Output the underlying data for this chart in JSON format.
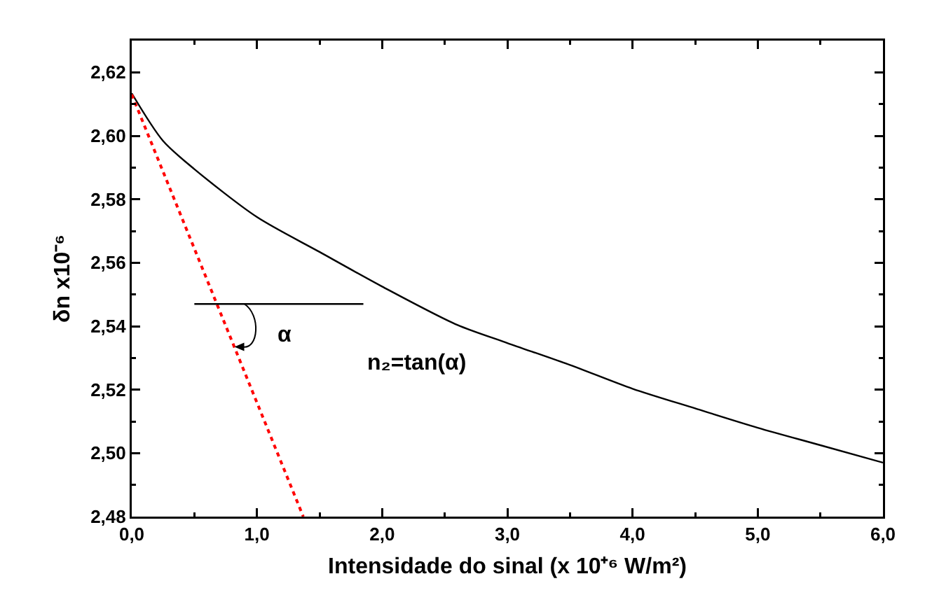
{
  "chart_data": {
    "type": "line",
    "xlabel": "Intensidade do sinal (x 10⁺⁶ W/m²)",
    "ylabel": "δn x10⁻⁶",
    "xlim": [
      0,
      6
    ],
    "ylim": [
      2.48,
      2.63
    ],
    "xticks": [
      {
        "value": 0,
        "label": "0,0"
      },
      {
        "value": 1,
        "label": "1,0"
      },
      {
        "value": 2,
        "label": "2,0"
      },
      {
        "value": 3,
        "label": "3,0"
      },
      {
        "value": 4,
        "label": "4,0"
      },
      {
        "value": 5,
        "label": "5,0"
      },
      {
        "value": 6,
        "label": "6,0"
      }
    ],
    "yticks": [
      {
        "value": 2.48,
        "label": "2,48"
      },
      {
        "value": 2.5,
        "label": "2,50"
      },
      {
        "value": 2.52,
        "label": "2,52"
      },
      {
        "value": 2.54,
        "label": "2,54"
      },
      {
        "value": 2.56,
        "label": "2,56"
      },
      {
        "value": 2.58,
        "label": "2,58"
      },
      {
        "value": 2.6,
        "label": "2,60"
      },
      {
        "value": 2.62,
        "label": "2,62"
      }
    ],
    "grid": false,
    "marker": "none",
    "series": [
      {
        "color": "#000000",
        "line_style": "solid",
        "x": [
          0,
          0.25,
          0.5,
          1,
          1.5,
          2,
          2.6,
          3,
          3.5,
          4,
          4.5,
          5,
          5.5,
          6
        ],
        "values": [
          2.6134,
          2.5984,
          2.5895,
          2.5744,
          2.5634,
          2.5525,
          2.5404,
          2.5347,
          2.5278,
          2.5203,
          2.5141,
          2.508,
          2.5025,
          2.497
        ]
      },
      {
        "color": "#ff0000",
        "line_style": "dotted",
        "x": [
          0,
          1.37
        ],
        "values": [
          2.613,
          2.48
        ]
      },
      {
        "color": "#000000",
        "line_style": "solid",
        "x": [
          0.5,
          1.85
        ],
        "values": [
          2.547,
          2.547
        ]
      }
    ],
    "annotations": [
      "α",
      "n₂=tan(α)"
    ]
  }
}
